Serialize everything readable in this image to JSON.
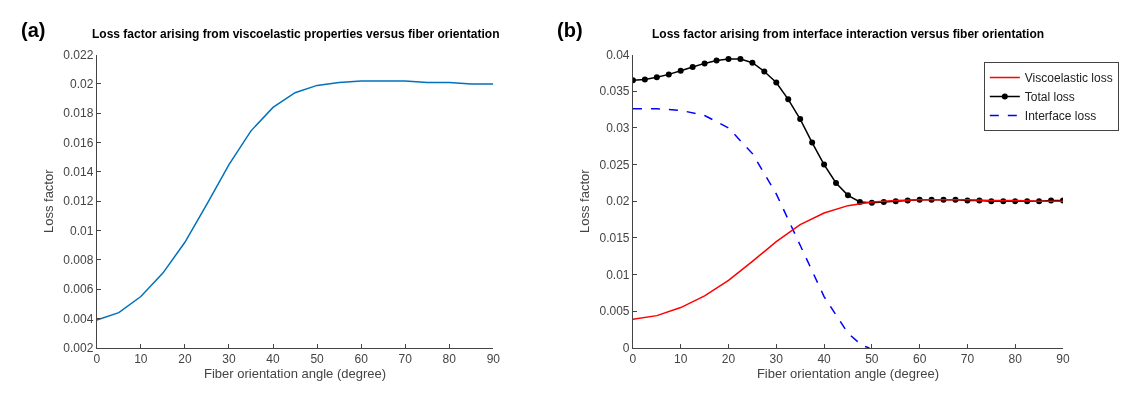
{
  "chart_data": [
    {
      "type": "line",
      "title": "Loss factor arising from viscoelastic properties versus fiber orientation",
      "xlabel": "Fiber orientation angle (degree)",
      "ylabel": "Loss factor",
      "annotations": [
        "(a)"
      ],
      "x": [
        0,
        5,
        10,
        15,
        20,
        25,
        30,
        35,
        40,
        45,
        50,
        55,
        60,
        65,
        70,
        75,
        80,
        85,
        90
      ],
      "series": [
        {
          "color": "#0072bd",
          "values": [
            0.0039,
            0.0044,
            0.0055,
            0.0071,
            0.0092,
            0.0118,
            0.0145,
            0.0168,
            0.0184,
            0.0194,
            0.0199,
            0.0201,
            0.0202,
            0.0202,
            0.0202,
            0.0201,
            0.0201,
            0.02,
            0.02
          ]
        }
      ],
      "xlim": [
        0,
        90
      ],
      "xticks": [
        0,
        10,
        20,
        30,
        40,
        50,
        60,
        70,
        80,
        90
      ],
      "ylim": [
        0.002,
        0.022
      ],
      "yticks": [
        0.002,
        0.004,
        0.006,
        0.008,
        0.01,
        0.012,
        0.014,
        0.016,
        0.018,
        0.02,
        0.022
      ],
      "legend": false
    },
    {
      "type": "line",
      "title": "Loss factor arising from interface interaction versus fiber orientation",
      "xlabel": "Fiber orientation angle (degree)",
      "ylabel": "Loss factor",
      "annotations": [
        "(b)"
      ],
      "series": [
        {
          "name": "Viscoelastic loss",
          "color": "#ff0000",
          "x": [
            0,
            5,
            10,
            15,
            20,
            25,
            30,
            35,
            40,
            45,
            50,
            55,
            60,
            65,
            70,
            75,
            80,
            85,
            90
          ],
          "values": [
            0.0039,
            0.0044,
            0.0055,
            0.0071,
            0.0092,
            0.0118,
            0.0145,
            0.0168,
            0.0184,
            0.0194,
            0.0199,
            0.0201,
            0.0202,
            0.0202,
            0.0202,
            0.0201,
            0.0201,
            0.02,
            0.02
          ],
          "line_style": "solid",
          "marker": "none"
        },
        {
          "name": "Total loss",
          "color": "#000000",
          "x": [
            0,
            2.5,
            5,
            7.5,
            10,
            12.5,
            15,
            17.5,
            20,
            22.5,
            25,
            27.5,
            30,
            32.5,
            35,
            37.5,
            40,
            42.5,
            45,
            47.5,
            50,
            52.5,
            55,
            57.5,
            60,
            62.5,
            65,
            67.5,
            70,
            72.5,
            75,
            77.5,
            80,
            82.5,
            85,
            87.5,
            90
          ],
          "values": [
            0.0365,
            0.0366,
            0.0369,
            0.0373,
            0.0378,
            0.0383,
            0.0388,
            0.0392,
            0.0394,
            0.0394,
            0.0389,
            0.0377,
            0.0362,
            0.0339,
            0.0312,
            0.028,
            0.025,
            0.0225,
            0.0208,
            0.0199,
            0.0198,
            0.0199,
            0.02,
            0.0201,
            0.0202,
            0.0202,
            0.0202,
            0.0202,
            0.0201,
            0.0201,
            0.02,
            0.02,
            0.02,
            0.02,
            0.02,
            0.0201,
            0.0201
          ],
          "line_style": "solid",
          "marker": "circle"
        },
        {
          "name": "Interface loss",
          "color": "#0000ff",
          "x": [
            0,
            5,
            10,
            15,
            20,
            25,
            30,
            35,
            40,
            45,
            48,
            49.5
          ],
          "values": [
            0.0326,
            0.0326,
            0.0324,
            0.0317,
            0.03,
            0.0265,
            0.021,
            0.014,
            0.007,
            0.002,
            0.0003,
            0.0
          ],
          "line_style": "dashed",
          "marker": "none"
        }
      ],
      "xlim": [
        0,
        90
      ],
      "xticks": [
        0,
        10,
        20,
        30,
        40,
        50,
        60,
        70,
        80,
        90
      ],
      "ylim": [
        0,
        0.04
      ],
      "yticks": [
        0,
        0.005,
        0.01,
        0.015,
        0.02,
        0.025,
        0.03,
        0.035,
        0.04
      ],
      "legend": "top right"
    }
  ]
}
